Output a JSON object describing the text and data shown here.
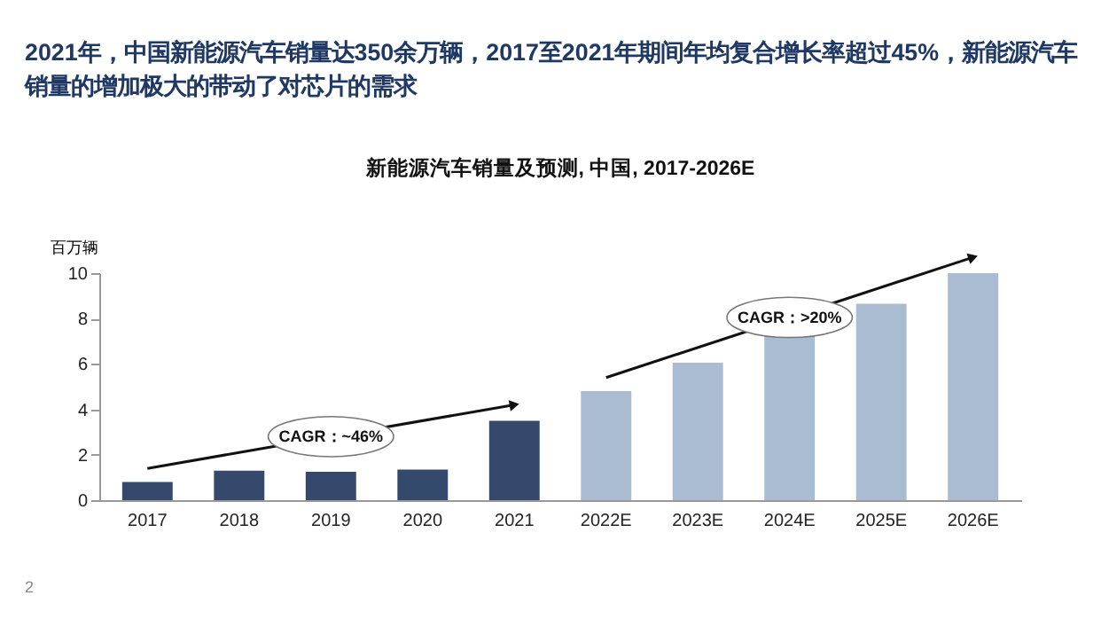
{
  "chart_data": {
    "type": "bar",
    "title": "2021年，中国新能源汽车销量达350余万辆，2017至2021年期间年均复合增长率超过45%，新能源汽车销量的增加极大的带动了对芯片的需求",
    "subtitle": "新能源汽车销量及预测, 中国, 2017-2026E",
    "ylabel": "百万辆",
    "categories": [
      "2017",
      "2018",
      "2019",
      "2020",
      "2021",
      "2022E",
      "2023E",
      "2024E",
      "2025E",
      "2026E"
    ],
    "values": [
      0.8,
      1.3,
      1.25,
      1.35,
      3.5,
      4.8,
      6.05,
      7.35,
      8.65,
      10
    ],
    "colors": [
      "#34496b",
      "#34496b",
      "#34496b",
      "#34496b",
      "#34496b",
      "#a9bcd2",
      "#a9bcd2",
      "#a9bcd2",
      "#a9bcd2",
      "#a9bcd2"
    ],
    "ylim": [
      0,
      10
    ],
    "yticks": [
      0,
      2,
      4,
      6,
      8,
      10
    ],
    "grid": false,
    "annotations": [
      "CAGR：~46%",
      "CAGR：>20%",
      "2"
    ]
  }
}
